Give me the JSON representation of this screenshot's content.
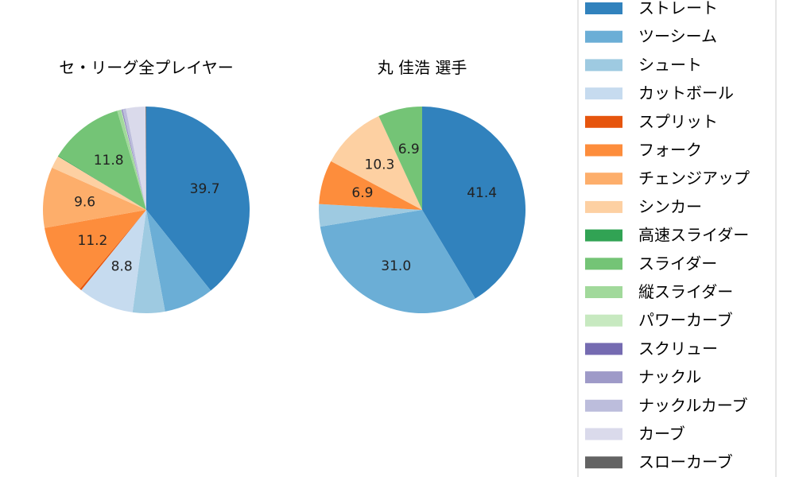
{
  "chart_data": [
    {
      "type": "pie",
      "title": "セ・リーグ全プレイヤー",
      "start_angle": "90° (top), clockwise",
      "slices": [
        {
          "name": "ストレート",
          "value": 39.7,
          "label": "39.7",
          "color": "#3182bd"
        },
        {
          "name": "ツーシーム",
          "value": 7.9,
          "label": "",
          "color": "#6baed6"
        },
        {
          "name": "シュート",
          "value": 5.1,
          "label": "",
          "color": "#9ecae1"
        },
        {
          "name": "カットボール",
          "value": 8.8,
          "label": "8.8",
          "color": "#c6dbef"
        },
        {
          "name": "スプリット",
          "value": 0.3,
          "label": "",
          "color": "#e6550d"
        },
        {
          "name": "フォーク",
          "value": 11.2,
          "label": "11.2",
          "color": "#fd8d3c"
        },
        {
          "name": "チェンジアップ",
          "value": 9.6,
          "label": "9.6",
          "color": "#fdae6b"
        },
        {
          "name": "シンカー",
          "value": 2.0,
          "label": "",
          "color": "#fdd0a2"
        },
        {
          "name": "高速スライダー",
          "value": 0.1,
          "label": "",
          "color": "#31a354"
        },
        {
          "name": "スライダー",
          "value": 11.8,
          "label": "11.8",
          "color": "#74c476"
        },
        {
          "name": "縦スライダー",
          "value": 0.6,
          "label": "",
          "color": "#a1d99b"
        },
        {
          "name": "パワーカーブ",
          "value": 0.1,
          "label": "",
          "color": "#c7e9c0"
        },
        {
          "name": "スクリュー",
          "value": 0.1,
          "label": "",
          "color": "#756bb1"
        },
        {
          "name": "ナックル",
          "value": 0.1,
          "label": "",
          "color": "#9e9ac8"
        },
        {
          "name": "ナックルカーブ",
          "value": 0.5,
          "label": "",
          "color": "#bcbddc"
        },
        {
          "name": "カーブ",
          "value": 3.1,
          "label": "",
          "color": "#dadaeb"
        },
        {
          "name": "スローカーブ",
          "value": 0.1,
          "label": "",
          "color": "#636363"
        }
      ]
    },
    {
      "type": "pie",
      "title": "丸 佳浩  選手",
      "start_angle": "90° (top), clockwise",
      "slices": [
        {
          "name": "ストレート",
          "value": 41.4,
          "label": "41.4",
          "color": "#3182bd"
        },
        {
          "name": "ツーシーム",
          "value": 31.0,
          "label": "31.0",
          "color": "#6baed6"
        },
        {
          "name": "シュート",
          "value": 3.5,
          "label": "",
          "color": "#9ecae1"
        },
        {
          "name": "フォーク",
          "value": 6.9,
          "label": "6.9",
          "color": "#fd8d3c"
        },
        {
          "name": "シンカー",
          "value": 10.3,
          "label": "10.3",
          "color": "#fdd0a2"
        },
        {
          "name": "スライダー",
          "value": 6.9,
          "label": "6.9",
          "color": "#74c476"
        }
      ]
    }
  ],
  "legend": {
    "placement": "right",
    "entries": [
      {
        "label": "ストレート",
        "color": "#3182bd"
      },
      {
        "label": "ツーシーム",
        "color": "#6baed6"
      },
      {
        "label": "シュート",
        "color": "#9ecae1"
      },
      {
        "label": "カットボール",
        "color": "#c6dbef"
      },
      {
        "label": "スプリット",
        "color": "#e6550d"
      },
      {
        "label": "フォーク",
        "color": "#fd8d3c"
      },
      {
        "label": "チェンジアップ",
        "color": "#fdae6b"
      },
      {
        "label": "シンカー",
        "color": "#fdd0a2"
      },
      {
        "label": "高速スライダー",
        "color": "#31a354"
      },
      {
        "label": "スライダー",
        "color": "#74c476"
      },
      {
        "label": "縦スライダー",
        "color": "#a1d99b"
      },
      {
        "label": "パワーカーブ",
        "color": "#c7e9c0"
      },
      {
        "label": "スクリュー",
        "color": "#756bb1"
      },
      {
        "label": "ナックル",
        "color": "#9e9ac8"
      },
      {
        "label": "ナックルカーブ",
        "color": "#bcbddc"
      },
      {
        "label": "カーブ",
        "color": "#dadaeb"
      },
      {
        "label": "スローカーブ",
        "color": "#636363"
      }
    ]
  }
}
